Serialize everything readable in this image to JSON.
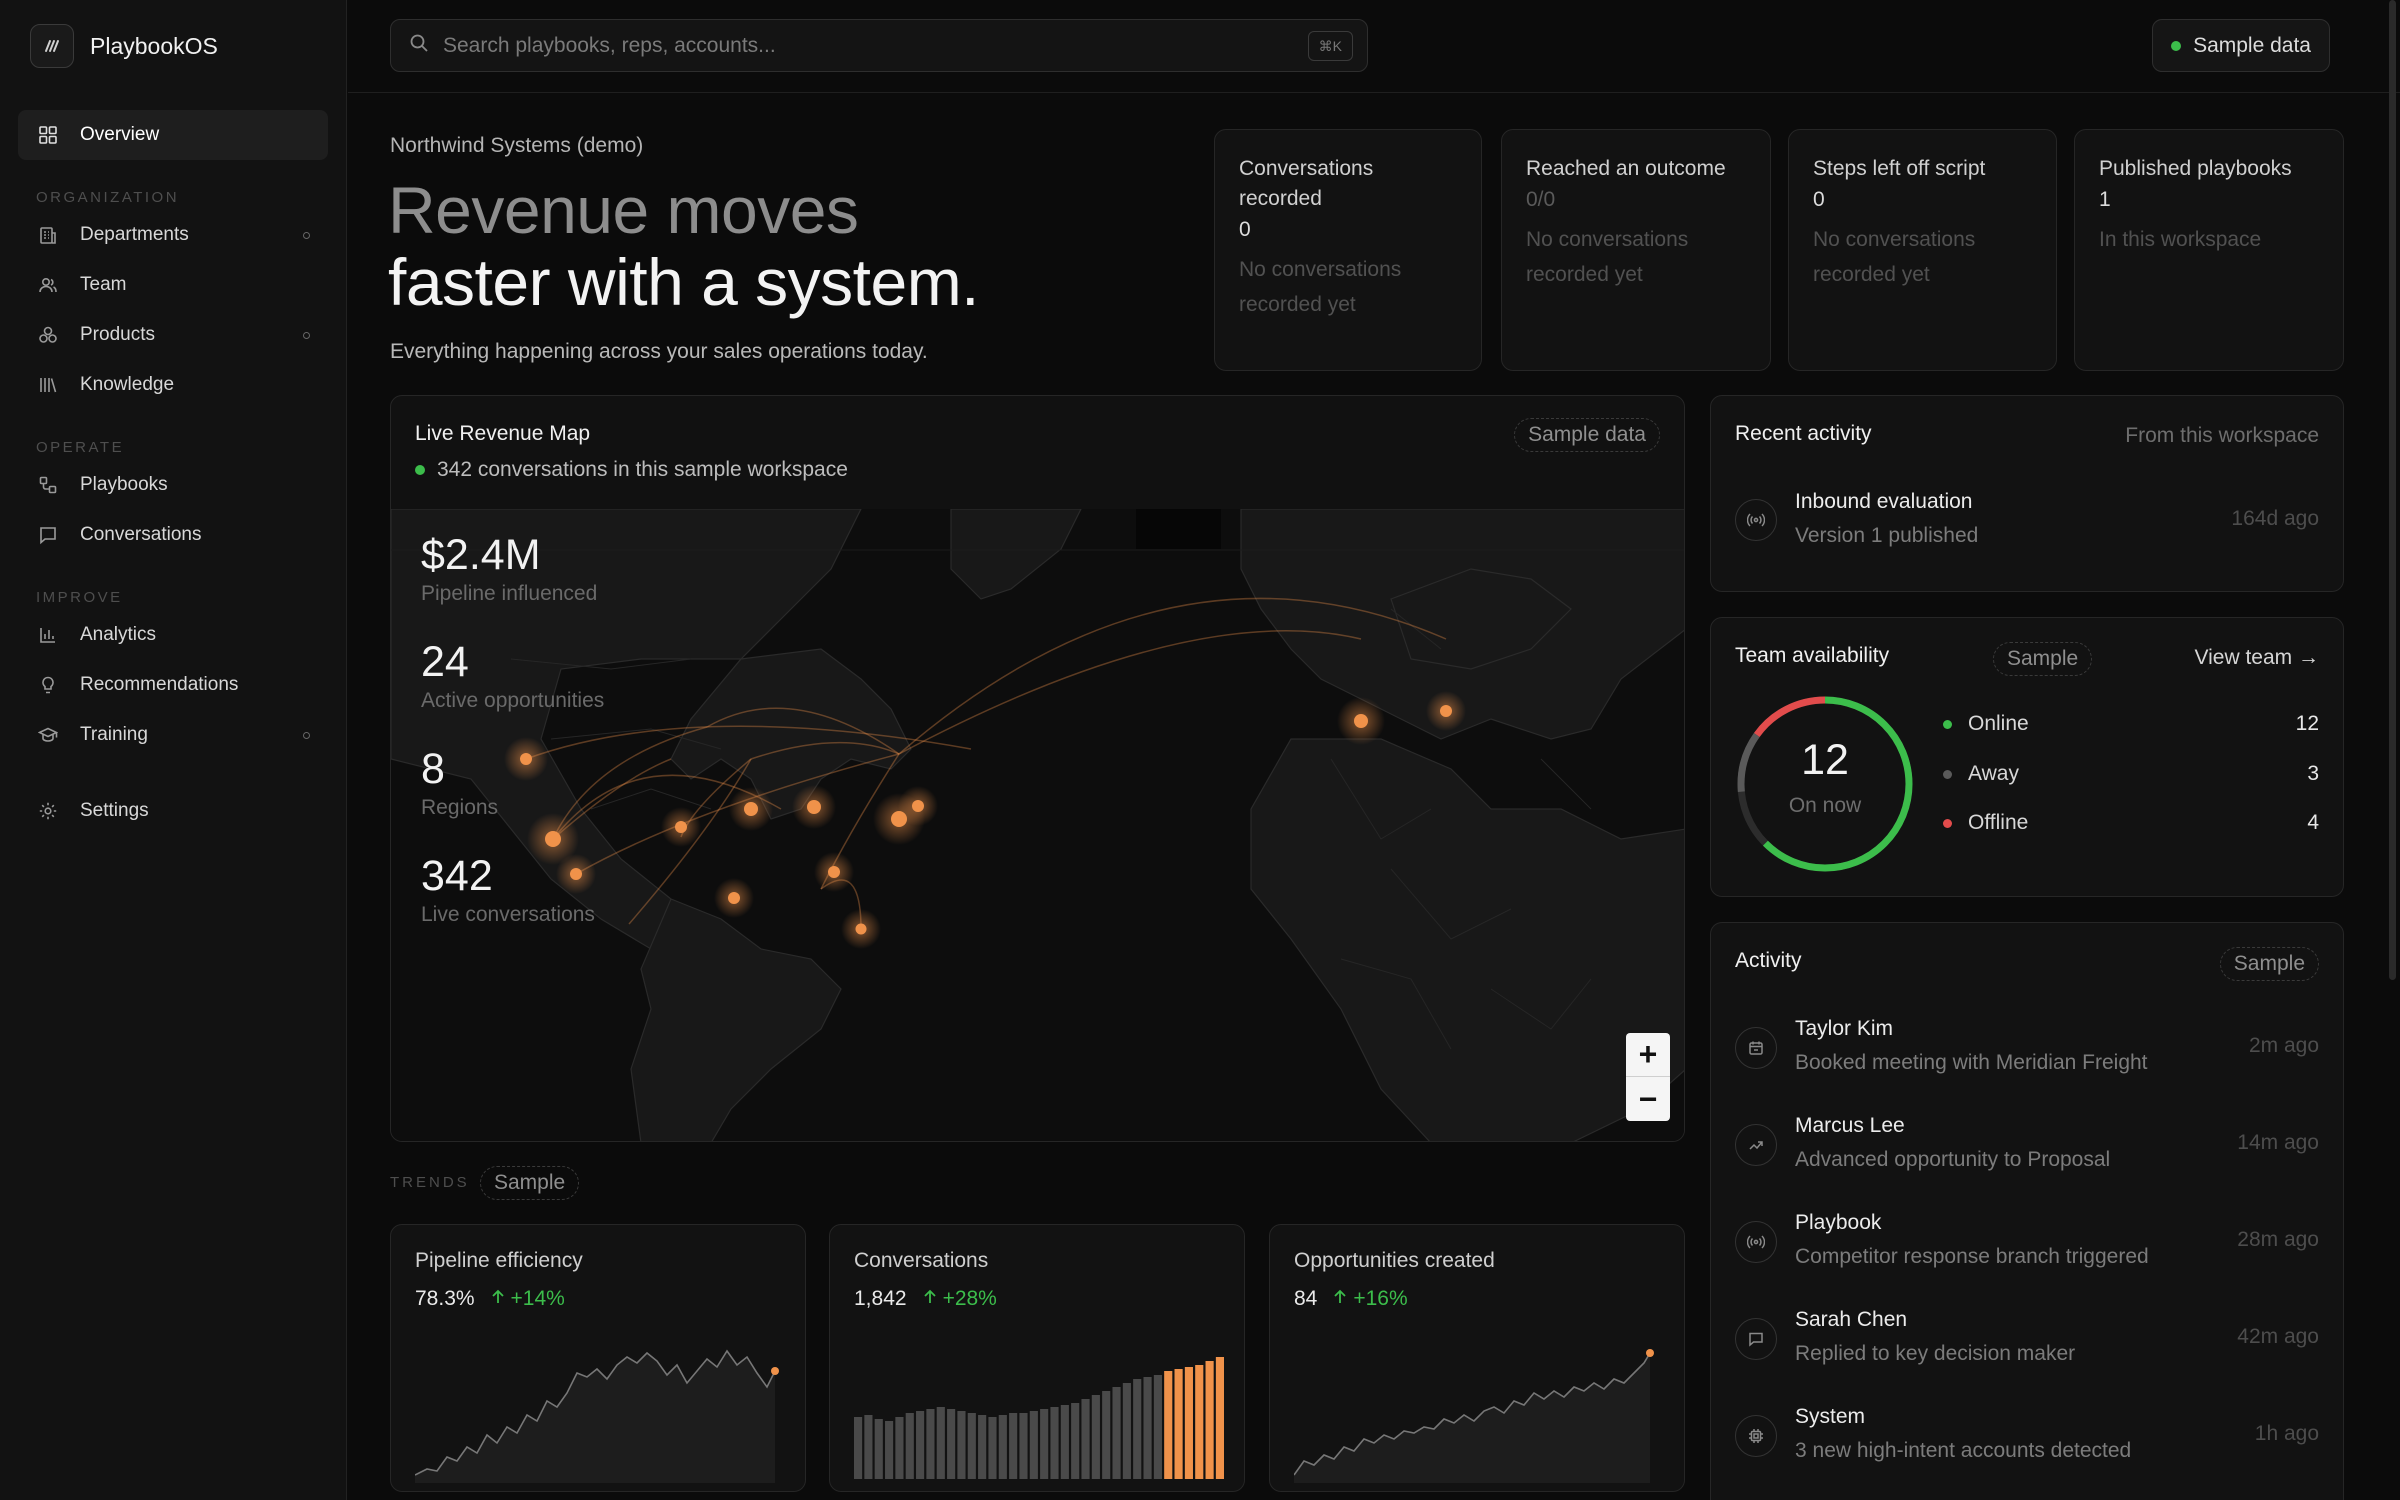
{
  "app": {
    "name": "PlaybookOS"
  },
  "sidebar": {
    "overview": "Overview",
    "sections": {
      "organization": "ORGANIZATION",
      "operate": "OPERATE",
      "improve": "IMPROVE"
    },
    "items": {
      "departments": "Departments",
      "team": "Team",
      "products": "Products",
      "knowledge": "Knowledge",
      "playbooks": "Playbooks",
      "conversations": "Conversations",
      "analytics": "Analytics",
      "recommendations": "Recommendations",
      "training": "Training",
      "settings": "Settings"
    }
  },
  "topbar": {
    "search_placeholder": "Search playbooks, reps, accounts...",
    "shortcut": "⌘K",
    "sample_data": "Sample data"
  },
  "hero": {
    "org": "Northwind Systems (demo)",
    "line1": "Revenue moves",
    "line2": "faster with a system.",
    "subtitle": "Everything happening across your sales operations today."
  },
  "stats": [
    {
      "title": "Conversations recorded",
      "value": "0",
      "note": "No conversations recorded yet"
    },
    {
      "title": "Reached an outcome",
      "value": "0/0",
      "note": "No conversations recorded yet"
    },
    {
      "title": "Steps left off script",
      "value": "0",
      "note": "No conversations recorded yet"
    },
    {
      "title": "Published playbooks",
      "value": "1",
      "note": "In this workspace"
    }
  ],
  "map": {
    "title": "Live Revenue Map",
    "tag": "Sample data",
    "status": "342 conversations in this sample workspace",
    "kpis": [
      {
        "value": "$2.4M",
        "label": "Pipeline influenced"
      },
      {
        "value": "24",
        "label": "Active opportunities"
      },
      {
        "value": "8",
        "label": "Regions"
      },
      {
        "value": "342",
        "label": "Live conversations"
      }
    ],
    "zoom_in": "+",
    "zoom_out": "−",
    "accent": "#f0924a"
  },
  "trends": {
    "label": "TRENDS",
    "tag": "Sample",
    "cards": [
      {
        "title": "Pipeline efficiency",
        "value": "78.3%",
        "delta": "+14%"
      },
      {
        "title": "Conversations",
        "value": "1,842",
        "delta": "+28%"
      },
      {
        "title": "Opportunities created",
        "value": "84",
        "delta": "+16%"
      }
    ]
  },
  "recent_activity": {
    "title": "Recent activity",
    "subtitle": "From this workspace",
    "item": {
      "name": "Inbound evaluation",
      "desc": "Version 1 published",
      "time": "164d ago"
    }
  },
  "team_availability": {
    "title": "Team availability",
    "tag": "Sample",
    "link": "View team →",
    "center_value": "12",
    "center_label": "On now",
    "rows": [
      {
        "label": "Online",
        "count": "12",
        "color": "#3cbd4b"
      },
      {
        "label": "Away",
        "count": "3",
        "color": "#5a5a5a"
      },
      {
        "label": "Offline",
        "count": "4",
        "color": "#e24c4c"
      }
    ]
  },
  "activity": {
    "title": "Activity",
    "tag": "Sample",
    "items": [
      {
        "name": "Taylor Kim",
        "desc": "Booked meeting with Meridian Freight",
        "time": "2m ago",
        "icon": "calendar-icon"
      },
      {
        "name": "Marcus Lee",
        "desc": "Advanced opportunity to Proposal",
        "time": "14m ago",
        "icon": "trending-up-icon"
      },
      {
        "name": "Playbook",
        "desc": "Competitor response branch triggered",
        "time": "28m ago",
        "icon": "broadcast-icon"
      },
      {
        "name": "Sarah Chen",
        "desc": "Replied to key decision maker",
        "time": "42m ago",
        "icon": "message-icon"
      },
      {
        "name": "System",
        "desc": "3 new high-intent accounts detected",
        "time": "1h ago",
        "icon": "cpu-icon"
      }
    ]
  },
  "colors": {
    "accent": "#f0924a",
    "positive": "#3cbd4b",
    "negative": "#e24c4c",
    "background": "#0b0b0b"
  }
}
